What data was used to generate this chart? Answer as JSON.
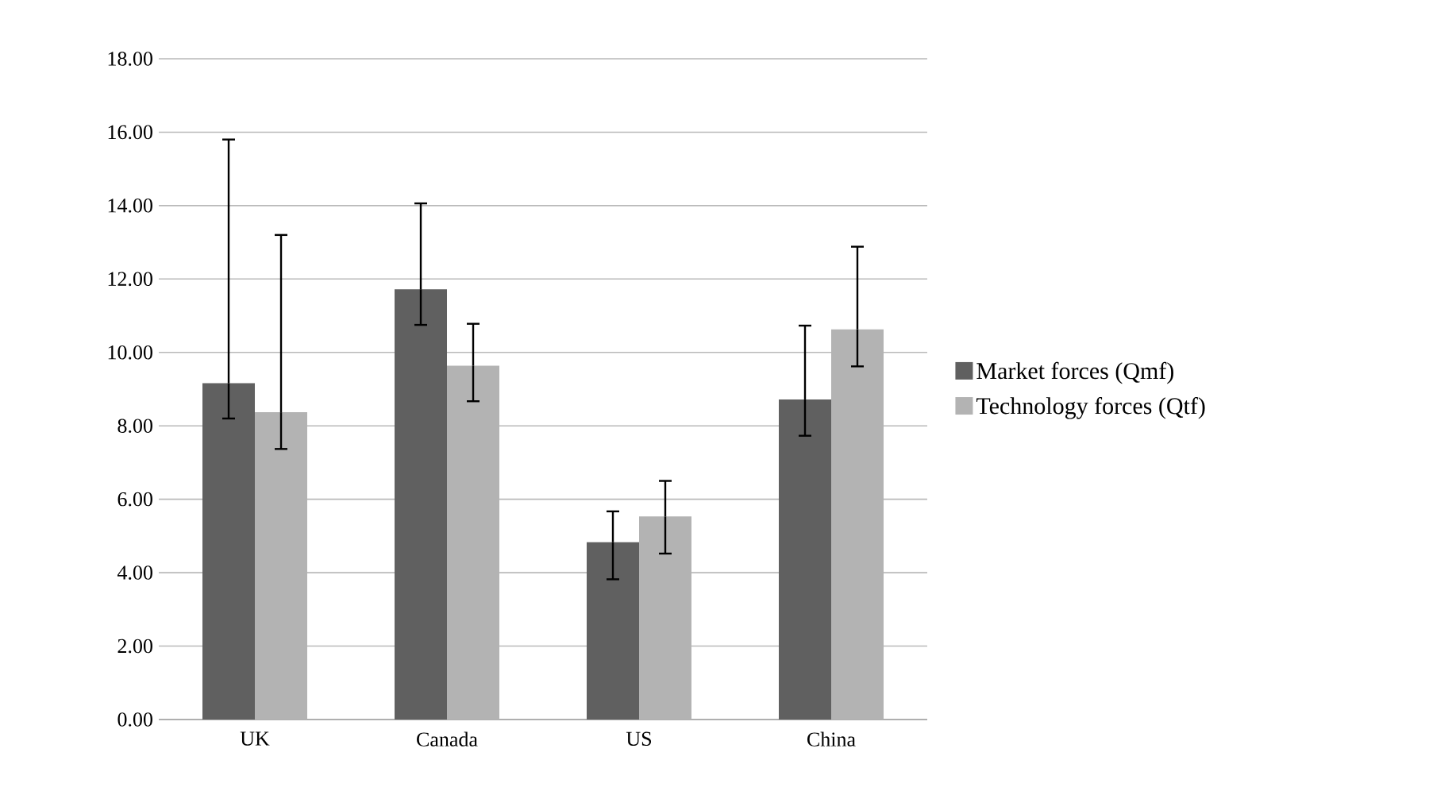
{
  "chart_data": {
    "type": "bar",
    "categories": [
      "UK",
      "Canada",
      "US",
      "China"
    ],
    "series": [
      {
        "name": "Market forces (Qmf)",
        "color": "#606060",
        "values": [
          9.16,
          11.72,
          4.83,
          8.72
        ],
        "errors": [
          [
            8.2,
            15.8
          ],
          [
            10.75,
            14.06
          ],
          [
            3.82,
            5.67
          ],
          [
            7.73,
            10.73
          ]
        ]
      },
      {
        "name": "Technology forces (Qtf)",
        "color": "#b3b3b3",
        "values": [
          8.37,
          9.64,
          5.53,
          10.63
        ],
        "errors": [
          [
            7.37,
            13.2
          ],
          [
            8.67,
            10.78
          ],
          [
            4.52,
            6.5
          ],
          [
            9.62,
            12.88
          ]
        ]
      }
    ],
    "ylim": [
      0,
      18
    ],
    "yticks": [
      {
        "value": 0,
        "label": "0.00"
      },
      {
        "value": 2,
        "label": "2.00"
      },
      {
        "value": 4,
        "label": "4.00"
      },
      {
        "value": 6,
        "label": "6.00"
      },
      {
        "value": 8,
        "label": "8.00"
      },
      {
        "value": 10,
        "label": "10.00"
      },
      {
        "value": 12,
        "label": "12.00"
      },
      {
        "value": 14,
        "label": "14.00"
      },
      {
        "value": 16,
        "label": "16.00"
      },
      {
        "value": 18,
        "label": "18.00"
      }
    ],
    "grid": "y",
    "legend": "right"
  }
}
